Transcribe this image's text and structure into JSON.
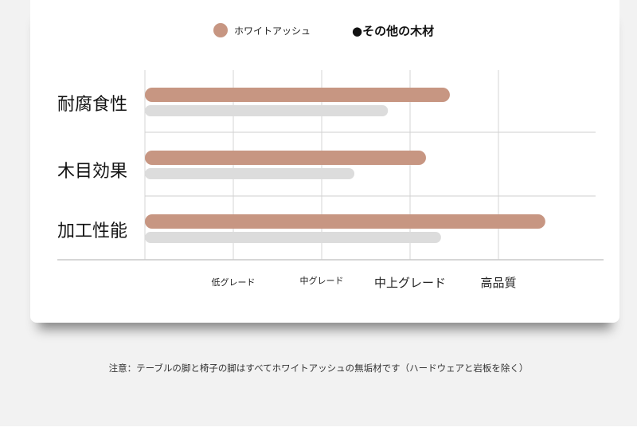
{
  "chart_data": {
    "type": "bar",
    "orientation": "horizontal",
    "categories": [
      "耐腐食性",
      "木目効果",
      "加工性能"
    ],
    "series": [
      {
        "name": "ホワイトアッシュ",
        "color": "#c79682",
        "values": [
          3.45,
          3.18,
          4.53
        ]
      },
      {
        "name": "●その他の木材",
        "color": "#dcdcdc",
        "values": [
          2.75,
          2.37,
          3.35
        ]
      }
    ],
    "x_ticks": [
      "低グレード",
      "中グレード",
      "中上グレード",
      "高品質"
    ],
    "xlim": [
      0,
      5
    ],
    "grid": true,
    "legend": "top"
  },
  "footnote": "注意：テーブルの脚と椅子の脚はすべてホワイトアッシュの無垢材です（ハードウェアと岩板を除く）"
}
